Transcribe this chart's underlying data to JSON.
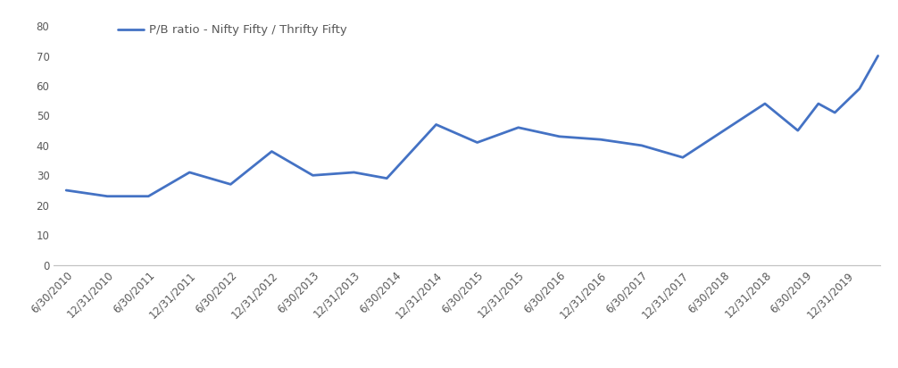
{
  "x_labels": [
    "6/30/2010",
    "12/31/2010",
    "6/30/2011",
    "12/31/2011",
    "6/30/2012",
    "12/31/2012",
    "6/30/2013",
    "12/31/2013",
    "6/30/2014",
    "12/31/2014",
    "6/30/2015",
    "12/31/2015",
    "6/30/2016",
    "12/31/2016",
    "6/30/2017",
    "12/31/2017",
    "6/30/2018",
    "12/31/2018",
    "6/30/2019",
    "12/31/2019"
  ],
  "x_fine": [
    0,
    1,
    2,
    3,
    4,
    5,
    6,
    7,
    7.8,
    9,
    10,
    11,
    12,
    13,
    14,
    15,
    16,
    17,
    17.8,
    18.3,
    18.7,
    19.3,
    19.75
  ],
  "y_fine": [
    25,
    23,
    23,
    31,
    27,
    38,
    30,
    31,
    29,
    47,
    41,
    46,
    43,
    42,
    40,
    36,
    45,
    54,
    45,
    54,
    51,
    59,
    70
  ],
  "line_color": "#4472C4",
  "legend_label": "P/B ratio - Nifty Fifty / Thrifty Fifty",
  "yticks": [
    0,
    10,
    20,
    30,
    40,
    50,
    60,
    70,
    80
  ],
  "ylim": [
    0,
    85
  ],
  "xlim": [
    -0.3,
    19.8
  ],
  "background_color": "#ffffff",
  "line_width": 2.0,
  "tick_label_fontsize": 8.5,
  "tick_label_color": "#595959",
  "legend_fontsize": 9.5
}
